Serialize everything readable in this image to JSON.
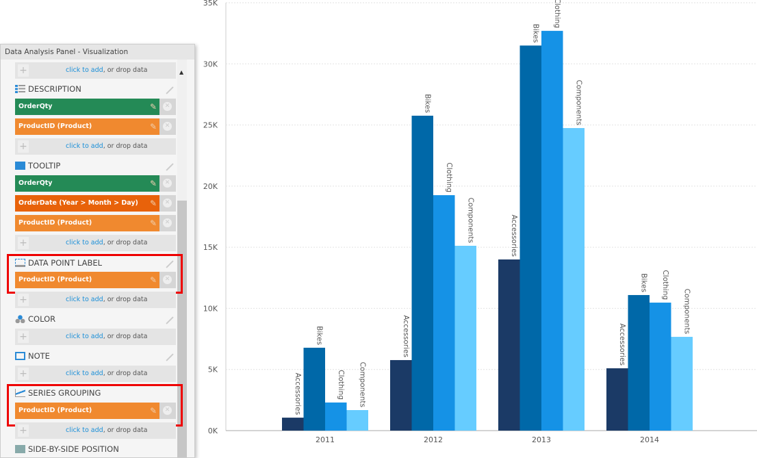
{
  "panel": {
    "title": "Data Analysis Panel - Visualization",
    "add_link": "click to add",
    "add_suffix": ", or drop data",
    "sections": {
      "description": {
        "label": "DESCRIPTION",
        "fields": [
          "OrderQty",
          "ProductID (Product)"
        ]
      },
      "tooltip": {
        "label": "TOOLTIP",
        "fields": [
          "OrderQty",
          "OrderDate (Year > Month > Day)",
          "ProductID (Product)"
        ]
      },
      "data_point_label": {
        "label": "DATA POINT LABEL",
        "fields": [
          "ProductID (Product)"
        ]
      },
      "color": {
        "label": "COLOR"
      },
      "note": {
        "label": "NOTE"
      },
      "series_grouping": {
        "label": "SERIES GROUPING",
        "fields": [
          "ProductID (Product)"
        ]
      },
      "side_by_side": {
        "label": "SIDE-BY-SIDE POSITION"
      }
    },
    "field_colors": {
      "measure": "#248a56",
      "dimension": "#f0892f",
      "date": "#e8620a"
    }
  },
  "chart_data": {
    "type": "bar",
    "categories": [
      "2011",
      "2012",
      "2013",
      "2014"
    ],
    "series": [
      {
        "name": "Accessories",
        "color": "#1b3a66",
        "values": [
          1060,
          5770,
          14000,
          5100
        ]
      },
      {
        "name": "Bikes",
        "color": "#0068a8",
        "values": [
          6780,
          25760,
          31500,
          11090
        ]
      },
      {
        "name": "Clothing",
        "color": "#1592e6",
        "values": [
          2300,
          19260,
          32700,
          10470
        ]
      },
      {
        "name": "Components",
        "color": "#66ccff",
        "values": [
          1680,
          15120,
          24750,
          7670
        ]
      }
    ],
    "ylim": [
      0,
      35000
    ],
    "yticks": [
      "0K",
      "5K",
      "10K",
      "15K",
      "20K",
      "25K",
      "30K",
      "35K"
    ],
    "grid": true
  }
}
